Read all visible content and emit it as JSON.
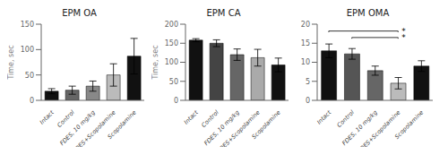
{
  "chart_data": [
    {
      "type": "bar",
      "title": "EPM OA",
      "y_label": "Time, sec",
      "categories": [
        "Intact",
        "Control",
        "FDES, 10 mg/kg",
        "FDES+Scopolamine",
        "Scopolamine"
      ],
      "values": [
        18,
        20,
        28,
        50,
        87
      ],
      "errors": [
        5,
        8,
        10,
        22,
        35
      ],
      "colors": [
        "#111111",
        "#666666",
        "#888888",
        "#bbbbbb",
        "#111111"
      ],
      "ylim": [
        0,
        150
      ],
      "yticks": [
        0,
        50,
        100,
        150
      ]
    },
    {
      "type": "bar",
      "title": "EPM CA",
      "y_label": "Time, sec",
      "categories": [
        "Intact",
        "Control",
        "FDES, 10 mg/kg",
        "FDES+Scopolamine",
        "Scopolamine"
      ],
      "values": [
        158,
        150,
        120,
        112,
        93
      ],
      "errors": [
        4,
        9,
        15,
        22,
        18
      ],
      "colors": [
        "#111111",
        "#444444",
        "#666666",
        "#aaaaaa",
        "#111111"
      ],
      "ylim": [
        0,
        200
      ],
      "yticks": [
        0,
        50,
        100,
        150,
        200
      ]
    },
    {
      "type": "bar",
      "title": "EPM OMA",
      "categories": [
        "Intact",
        "Control",
        "FDES, 10 mg/kg",
        "FDES+Scopolamine",
        "Scopolamine"
      ],
      "values": [
        13,
        12.2,
        7.8,
        4.5,
        9.0
      ],
      "errors": [
        1.8,
        1.4,
        1.2,
        1.5,
        1.4
      ],
      "colors": [
        "#111111",
        "#555555",
        "#666666",
        "#bbbbbb",
        "#111111"
      ],
      "ylim": [
        0,
        20
      ],
      "yticks": [
        0,
        5,
        10,
        15,
        20
      ],
      "annotations": [
        {
          "text": "*",
          "from": "Intact",
          "to": "FDES+Scopolamine",
          "y": 18.2
        },
        {
          "text": "*",
          "from": "Control",
          "to": "FDES+Scopolamine",
          "y": 16.5
        }
      ]
    }
  ]
}
